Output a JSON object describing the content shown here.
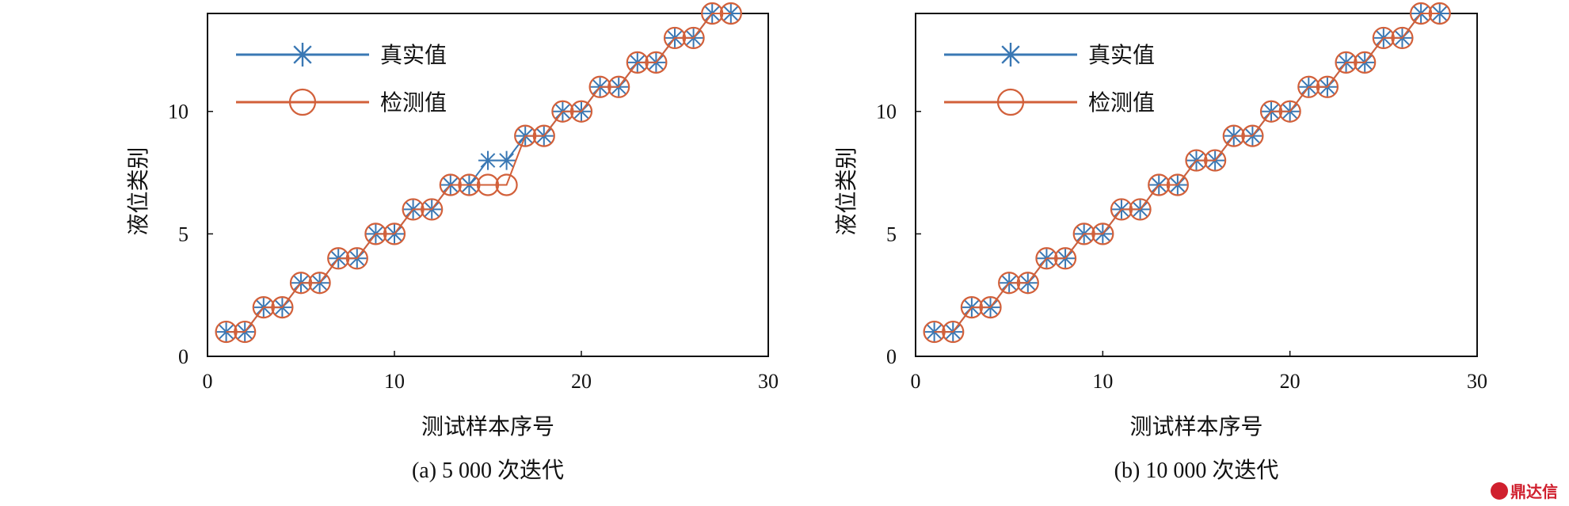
{
  "chart_data": [
    {
      "type": "line",
      "caption": "(a) 5 000 次迭代",
      "xlabel": "测试样本序号",
      "ylabel": "液位类别",
      "xlim": [
        0,
        30
      ],
      "ylim": [
        0,
        14
      ],
      "xticks": [
        0,
        10,
        20,
        30
      ],
      "yticks": [
        0,
        5,
        10
      ],
      "legend": "top-left",
      "x": [
        1,
        2,
        3,
        4,
        5,
        6,
        7,
        8,
        9,
        10,
        11,
        12,
        13,
        14,
        15,
        16,
        17,
        18,
        19,
        20,
        21,
        22,
        23,
        24,
        25,
        26,
        27,
        28
      ],
      "series": [
        {
          "name": "真实值",
          "marker": "star",
          "color": "#3a78b4",
          "values": [
            1,
            1,
            2,
            2,
            3,
            3,
            4,
            4,
            5,
            5,
            6,
            6,
            7,
            7,
            8,
            8,
            9,
            9,
            10,
            10,
            11,
            11,
            12,
            12,
            13,
            13,
            14,
            14
          ]
        },
        {
          "name": "检测值",
          "marker": "circle",
          "color": "#d2603a",
          "values": [
            1,
            1,
            2,
            2,
            3,
            3,
            4,
            4,
            5,
            5,
            6,
            6,
            7,
            7,
            7,
            7,
            9,
            9,
            10,
            10,
            11,
            11,
            12,
            12,
            13,
            13,
            14,
            14
          ]
        }
      ]
    },
    {
      "type": "line",
      "caption": "(b) 10 000 次迭代",
      "xlabel": "测试样本序号",
      "ylabel": "液位类别",
      "xlim": [
        0,
        30
      ],
      "ylim": [
        0,
        14
      ],
      "xticks": [
        0,
        10,
        20,
        30
      ],
      "yticks": [
        0,
        5,
        10
      ],
      "legend": "top-left",
      "x": [
        1,
        2,
        3,
        4,
        5,
        6,
        7,
        8,
        9,
        10,
        11,
        12,
        13,
        14,
        15,
        16,
        17,
        18,
        19,
        20,
        21,
        22,
        23,
        24,
        25,
        26,
        27,
        28
      ],
      "series": [
        {
          "name": "真实值",
          "marker": "star",
          "color": "#3a78b4",
          "values": [
            1,
            1,
            2,
            2,
            3,
            3,
            4,
            4,
            5,
            5,
            6,
            6,
            7,
            7,
            8,
            8,
            9,
            9,
            10,
            10,
            11,
            11,
            12,
            12,
            13,
            13,
            14,
            14
          ]
        },
        {
          "name": "检测值",
          "marker": "circle",
          "color": "#d2603a",
          "values": [
            1,
            1,
            2,
            2,
            3,
            3,
            4,
            4,
            5,
            5,
            6,
            6,
            7,
            7,
            8,
            8,
            9,
            9,
            10,
            10,
            11,
            11,
            12,
            12,
            13,
            13,
            14,
            14
          ]
        }
      ]
    }
  ],
  "watermark": "鼎达信"
}
